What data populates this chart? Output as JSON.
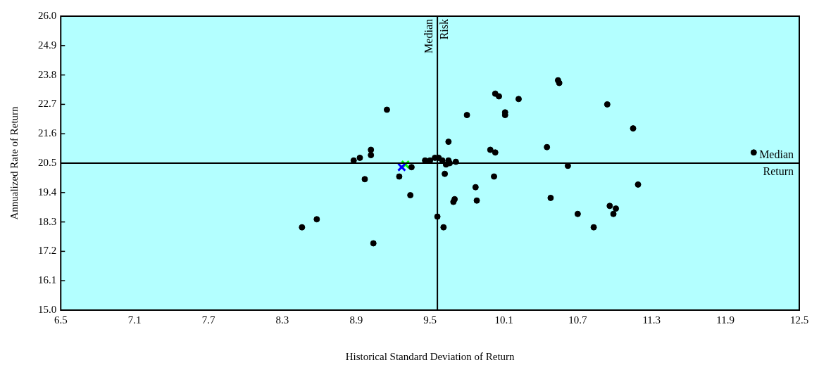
{
  "chart_data": {
    "type": "scatter",
    "xlabel": "Historical Standard Deviation of Return",
    "ylabel": "Annualized Rate of Return",
    "xlim": [
      6.5,
      12.5
    ],
    "xticks": [
      6.5,
      7.1,
      7.7,
      8.3,
      8.9,
      9.5,
      10.1,
      10.7,
      11.3,
      11.9,
      12.5
    ],
    "ylim": [
      15,
      26
    ],
    "yticks": [
      {
        "value": 15,
        "label": "15.0"
      },
      16.1,
      17.2,
      18.3,
      19.4,
      20.5,
      21.6,
      22.7,
      23.8,
      24.9,
      {
        "value": 26,
        "label": "26.0"
      }
    ],
    "grid": false,
    "legend": false,
    "marker": "circle",
    "ref_lines": [
      {
        "axis": "x",
        "value": 9.56,
        "label": "Median Risk",
        "color": "#000000"
      },
      {
        "axis": "y",
        "value": 20.5,
        "label": "Median Return",
        "color": "#000000"
      }
    ],
    "series": [
      {
        "color": "#000000",
        "x": [
          9.15,
          9.65,
          9.8,
          10.03,
          10.06,
          10.22,
          10.11,
          10.11,
          9.99,
          10.03,
          10.02,
          9.87,
          9.88,
          9.7,
          9.69,
          9.62,
          9.56,
          9.61,
          9.04,
          8.58,
          8.46,
          9.34,
          9.25,
          8.97,
          9.02,
          9.02,
          8.93,
          8.88,
          9.35,
          9.46,
          9.5,
          9.54,
          9.57,
          9.6,
          9.65,
          9.66,
          9.71,
          9.63,
          10.54,
          10.55,
          10.94,
          11.15,
          10.45,
          12.13,
          10.62,
          11.19,
          10.48,
          10.96,
          11.01,
          10.99,
          10.7,
          10.83
        ],
        "values": [
          22.5,
          21.3,
          22.3,
          23.1,
          23.0,
          22.9,
          22.4,
          22.3,
          21.0,
          20.9,
          20.0,
          19.6,
          19.1,
          19.15,
          19.05,
          20.1,
          18.5,
          18.1,
          17.5,
          18.4,
          18.1,
          19.3,
          20.0,
          19.9,
          21.0,
          20.8,
          20.7,
          20.6,
          20.35,
          20.6,
          20.6,
          20.7,
          20.7,
          20.6,
          20.6,
          20.5,
          20.55,
          20.45,
          23.6,
          23.5,
          22.7,
          21.8,
          21.1,
          20.9,
          20.4,
          19.7,
          19.2,
          18.9,
          18.8,
          18.6,
          18.6,
          18.1
        ]
      },
      {
        "color": "#0000ff",
        "marker": "cross",
        "x": [
          9.27
        ],
        "values": [
          20.35
        ]
      },
      {
        "color": "#00ff00",
        "marker": "cross",
        "x": [
          9.3
        ],
        "values": [
          20.45
        ]
      }
    ]
  }
}
